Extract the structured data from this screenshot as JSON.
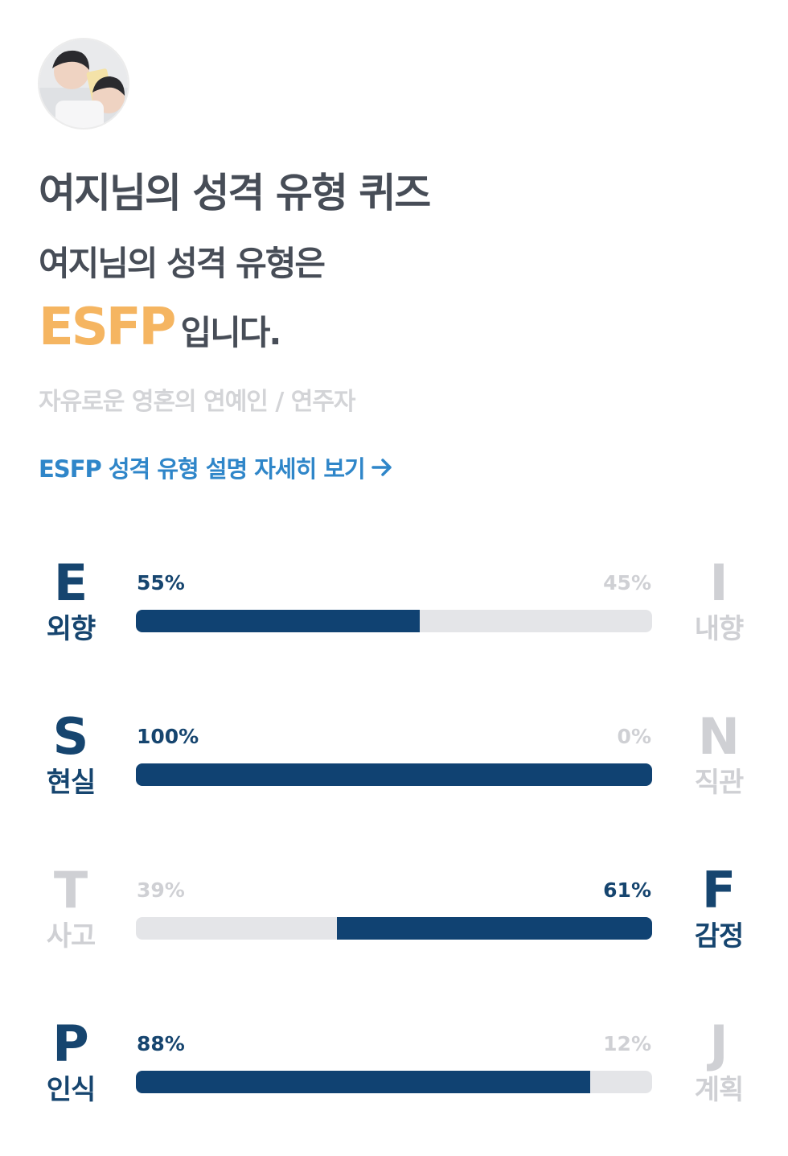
{
  "header": {
    "avatar_icon": "profile-photo",
    "title": "여지님의 성격 유형 퀴즈"
  },
  "result": {
    "subtitle": "여지님의 성격 유형은",
    "type_code": "ESFP",
    "type_suffix": "입니다.",
    "nickname": "자유로운 영혼의 연예인 / 연주자",
    "detail_link": "ESFP 성격 유형 설명 자세히 보기",
    "detail_link_icon": "arrow-right-icon"
  },
  "colors": {
    "accent_orange": "#f5b561",
    "navy": "#104272",
    "link_blue": "#2f86c9",
    "muted": "#cfd0d4",
    "track": "#e4e5e8"
  },
  "axes": [
    {
      "left_letter": "E",
      "left_label": "외향",
      "left_pct": "55%",
      "right_letter": "I",
      "right_label": "내향",
      "right_pct": "45%",
      "dominant": "left",
      "fill_fraction": 0.55
    },
    {
      "left_letter": "S",
      "left_label": "현실",
      "left_pct": "100%",
      "right_letter": "N",
      "right_label": "직관",
      "right_pct": "0%",
      "dominant": "left",
      "fill_fraction": 1.0
    },
    {
      "left_letter": "T",
      "left_label": "사고",
      "left_pct": "39%",
      "right_letter": "F",
      "right_label": "감정",
      "right_pct": "61%",
      "dominant": "right",
      "fill_fraction": 0.61
    },
    {
      "left_letter": "P",
      "left_label": "인식",
      "left_pct": "88%",
      "right_letter": "J",
      "right_label": "계획",
      "right_pct": "12%",
      "dominant": "left",
      "fill_fraction": 0.88
    }
  ]
}
